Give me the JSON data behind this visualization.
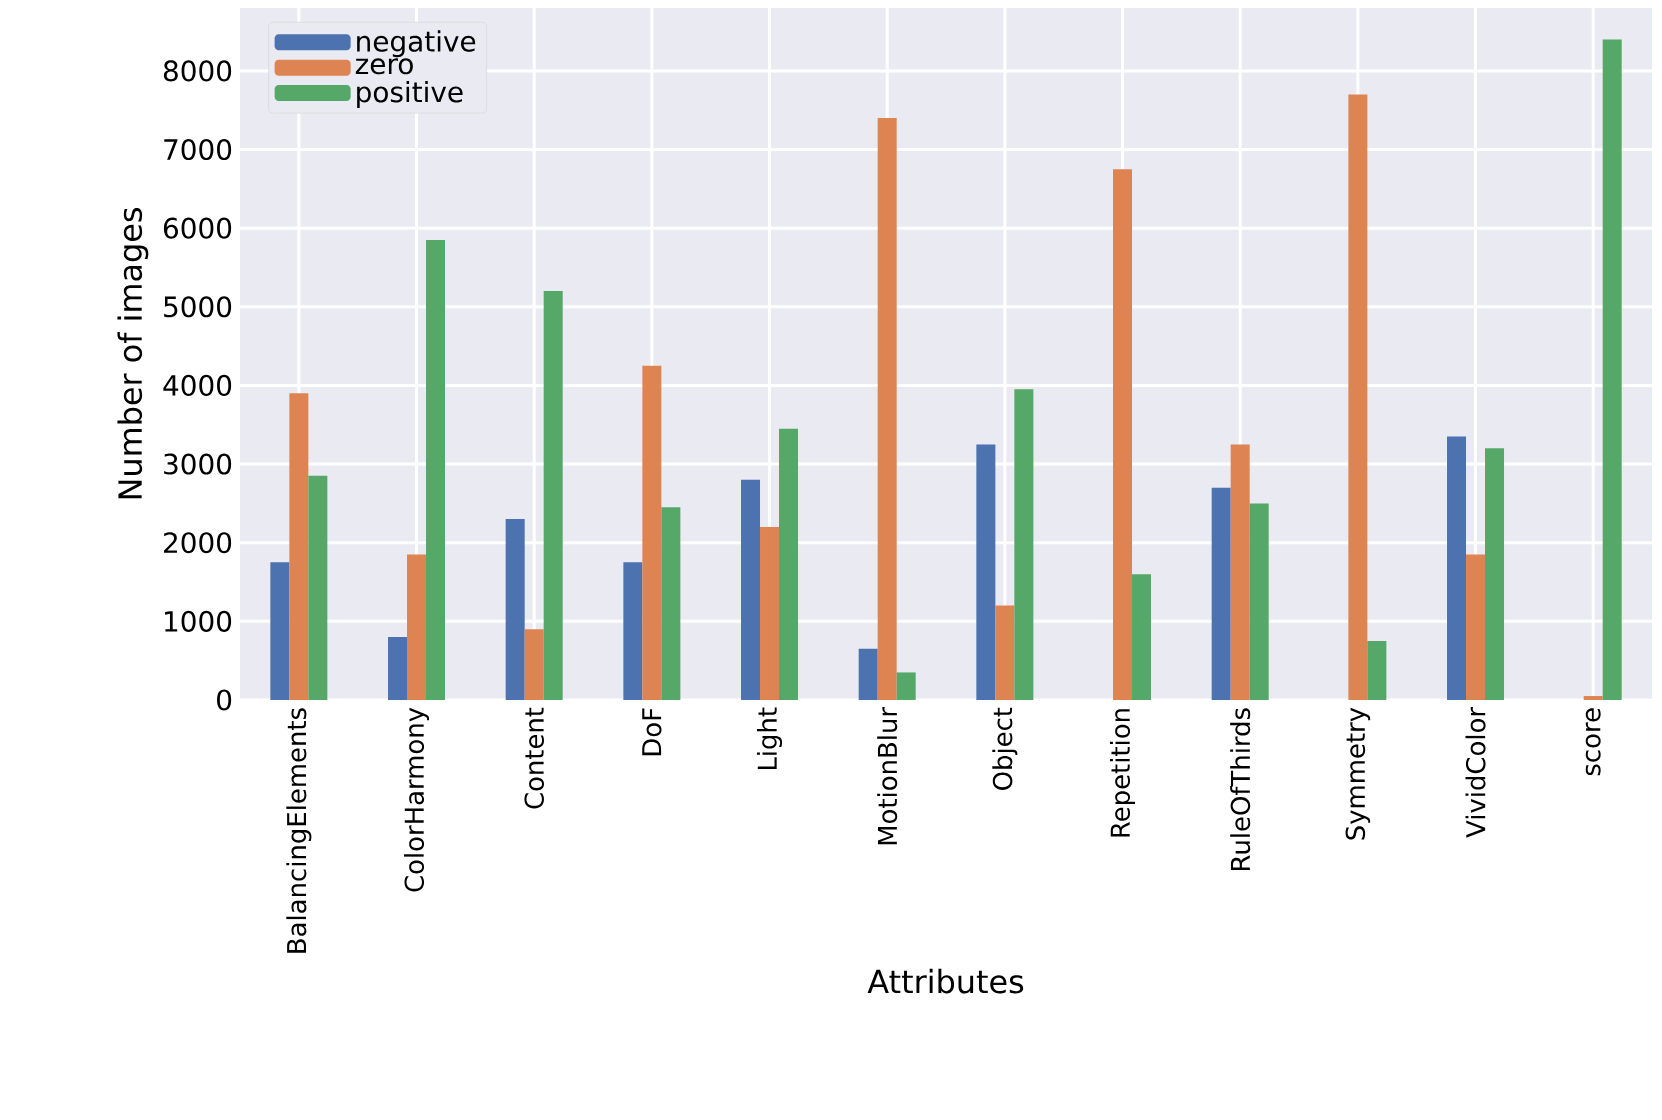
{
  "chart_data": {
    "type": "bar",
    "xlabel": "Attributes",
    "ylabel": "Number of images",
    "categories": [
      "BalancingElements",
      "ColorHarmony",
      "Content",
      "DoF",
      "Light",
      "MotionBlur",
      "Object",
      "Repetition",
      "RuleOfThirds",
      "Symmetry",
      "VividColor",
      "score"
    ],
    "series": [
      {
        "name": "negative",
        "color": "#4c72b0",
        "values": [
          1750,
          800,
          2300,
          1750,
          2800,
          650,
          3250,
          0,
          2700,
          0,
          3350,
          0
        ]
      },
      {
        "name": "zero",
        "color": "#dd8452",
        "values": [
          3900,
          1850,
          900,
          4250,
          2200,
          7400,
          1200,
          6750,
          3250,
          7700,
          1850,
          50
        ]
      },
      {
        "name": "positive",
        "color": "#55a868",
        "values": [
          2850,
          5850,
          5200,
          2450,
          3450,
          350,
          3950,
          1600,
          2500,
          750,
          3200,
          8400
        ]
      }
    ],
    "ylim": [
      0,
      8800
    ],
    "yticks": [
      0,
      1000,
      2000,
      3000,
      4000,
      5000,
      6000,
      7000,
      8000
    ],
    "grid": true,
    "legend": "top left"
  }
}
